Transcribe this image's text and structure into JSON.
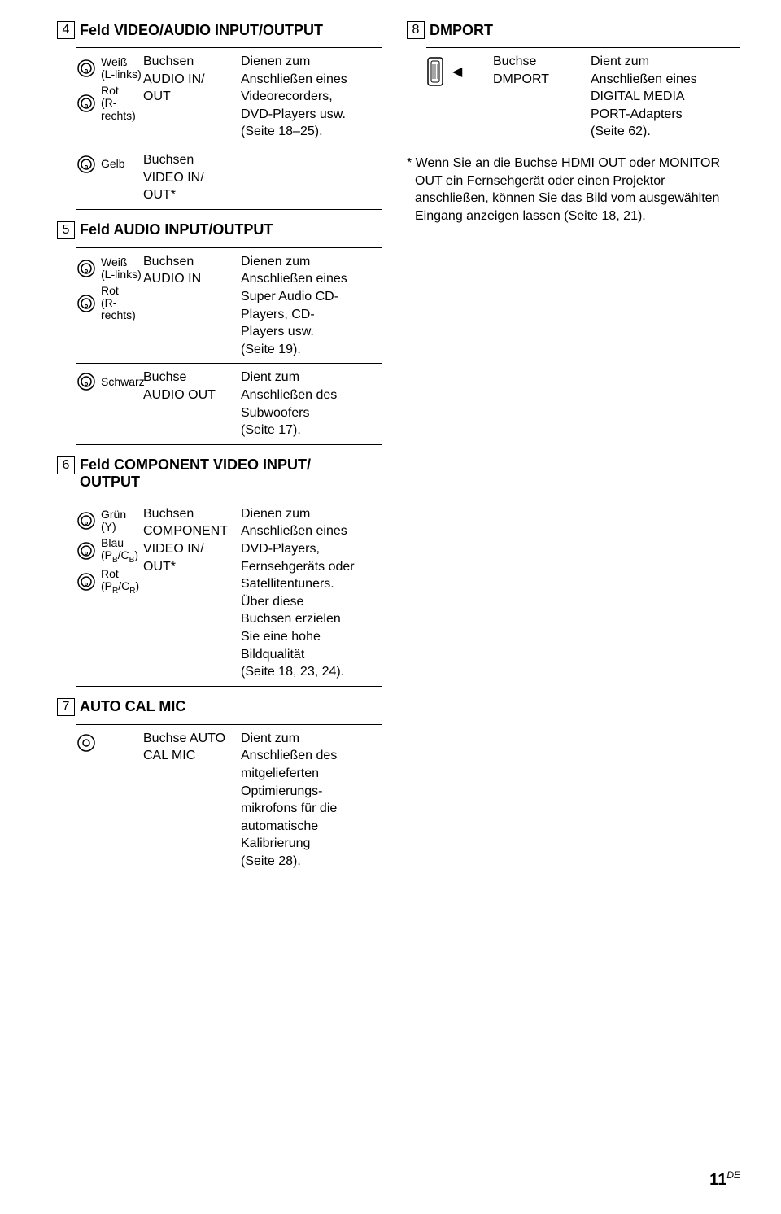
{
  "sections": {
    "s4": {
      "num": "4",
      "title": "Feld VIDEO/AUDIO INPUT/OUTPUT",
      "rows": [
        {
          "icons": [
            {
              "label": "Weiß\\n(L-links)"
            },
            {
              "label": "Rot\\n(R-rechts)"
            }
          ],
          "name": "Buchsen\\nAUDIO IN/\\nOUT",
          "desc": "Dienen zum\\nAnschließen eines\\nVideorecorders,\\nDVD-Players usw.\\n(Seite 18–25)."
        },
        {
          "icons": [
            {
              "label": "Gelb"
            }
          ],
          "name": "Buchsen\\nVIDEO IN/\\nOUT*",
          "desc": ""
        }
      ]
    },
    "s5": {
      "num": "5",
      "title": "Feld AUDIO INPUT/OUTPUT",
      "rows": [
        {
          "icons": [
            {
              "label": "Weiß\\n(L-links)"
            },
            {
              "label": "Rot\\n(R-rechts)"
            }
          ],
          "name": "Buchsen\\nAUDIO IN",
          "desc": "Dienen zum\\nAnschließen eines\\nSuper Audio CD-\\nPlayers, CD-\\nPlayers usw.\\n(Seite 19)."
        },
        {
          "icons": [
            {
              "label": "Schwarz"
            }
          ],
          "name": "Buchse\\nAUDIO OUT",
          "desc": "Dient zum\\nAnschließen des\\nSubwoofers\\n(Seite 17)."
        }
      ]
    },
    "s6": {
      "num": "6",
      "title": "Feld COMPONENT VIDEO INPUT/\\nOUTPUT",
      "rows": [
        {
          "icons": [
            {
              "label": "Grün\\n(Y)"
            },
            {
              "label": "Blau\\n(PB/CB)"
            },
            {
              "label": "Rot\\n(PR/CR)"
            }
          ],
          "name": "Buchsen\\nCOMPONENT\\nVIDEO IN/\\nOUT*",
          "desc": "Dienen zum\\nAnschließen eines\\nDVD-Players,\\nFernsehgeräts oder\\nSatellitentuners.\\nÜber diese\\nBuchsen erzielen\\nSie eine hohe\\nBildqualität\\n(Seite 18, 23, 24)."
        }
      ]
    },
    "s7": {
      "num": "7",
      "title": "AUTO CAL MIC",
      "rows": [
        {
          "icons": [
            {
              "label": ""
            }
          ],
          "name": "Buchse AUTO\\nCAL MIC",
          "desc": "Dient zum\\nAnschließen des\\nmitgelieferten\\nOptimierungs-\\nmikrofons für die\\nautomatische\\nKalibrierung\\n(Seite 28)."
        }
      ]
    },
    "s8": {
      "num": "8",
      "title": "DMPORT",
      "rows": [
        {
          "name": "Buchse\\nDMPORT",
          "desc": "Dient zum\\nAnschließen eines\\nDIGITAL MEDIA\\nPORT-Adapters\\n(Seite 62)."
        }
      ],
      "footnote": "* Wenn Sie an die Buchse HDMI OUT oder MONITOR OUT ein Fernsehgerät oder einen Projektor anschließen, können Sie das Bild vom ausgewählten Eingang anzeigen lassen (Seite 18, 21)."
    }
  },
  "page_number": "11",
  "page_suffix": "DE"
}
